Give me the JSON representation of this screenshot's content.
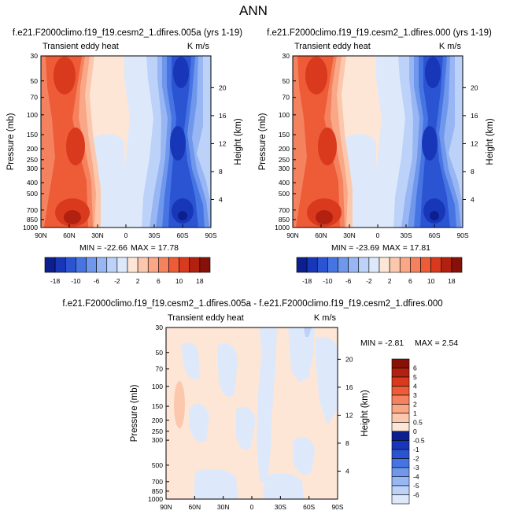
{
  "page": {
    "title": "ANN"
  },
  "colors": {
    "neg": [
      "#0b1f8e",
      "#1837b8",
      "#2b54d3",
      "#4674e3",
      "#6f97ec",
      "#97b6f3",
      "#bcd2f8",
      "#dde9fb"
    ],
    "zero": "#ffffff",
    "pos": [
      "#fde6d6",
      "#fcc8ad",
      "#f9a786",
      "#f5825e",
      "#ed5b37",
      "#d9391c",
      "#b2200f",
      "#861109"
    ]
  },
  "chart_data": [
    {
      "type": "heatmap",
      "panel": "top-left",
      "title": "f.e21.F2000climo.f19_f19.cesm2_1.dfires.005a (yrs 1-19)",
      "subtitle_left": "Transient eddy heat",
      "units": "K m/s",
      "ylabel": "Pressure (mb)",
      "ylabel_right": "Height (km)",
      "x_ticks": [
        "90N",
        "60N",
        "30N",
        "0",
        "30S",
        "60S",
        "90S"
      ],
      "x_range": [
        90,
        -90
      ],
      "y_ticks": [
        "30",
        "50",
        "70",
        "100",
        "150",
        "200",
        "250",
        "300",
        "400",
        "500",
        "700",
        "850",
        "1000"
      ],
      "y_range": [
        1000,
        30
      ],
      "height_ticks": [
        "4",
        "8",
        "12",
        "16",
        "20"
      ],
      "min_label": "MIN = -22.66",
      "max_label": "MAX = 17.78",
      "min": -22.66,
      "max": 17.78,
      "colorbar_labels": [
        "-18",
        "-10",
        "-6",
        "-2",
        "2",
        "6",
        "10",
        "18"
      ]
    },
    {
      "type": "heatmap",
      "panel": "top-right",
      "title": "f.e21.F2000climo.f19_f19.cesm2_1.dfires.000 (yrs 1-19)",
      "subtitle_left": "Transient eddy heat",
      "units": "K m/s",
      "ylabel": "Pressure (mb)",
      "ylabel_right": "Height (km)",
      "x_ticks": [
        "90N",
        "60N",
        "30N",
        "0",
        "30S",
        "60S",
        "90S"
      ],
      "x_range": [
        90,
        -90
      ],
      "y_ticks": [
        "30",
        "50",
        "70",
        "100",
        "150",
        "200",
        "250",
        "300",
        "400",
        "500",
        "700",
        "850",
        "1000"
      ],
      "y_range": [
        1000,
        30
      ],
      "height_ticks": [
        "4",
        "8",
        "12",
        "16",
        "20"
      ],
      "min_label": "MIN = -23.69",
      "max_label": "MAX = 17.81",
      "min": -23.69,
      "max": 17.81,
      "colorbar_labels": [
        "-18",
        "-10",
        "-6",
        "-2",
        "2",
        "6",
        "10",
        "18"
      ]
    },
    {
      "type": "heatmap",
      "panel": "bottom-difference",
      "title": "f.e21.F2000climo.f19_f19.cesm2_1.dfires.005a - f.e21.F2000climo.f19_f19.cesm2_1.dfires.000",
      "subtitle_left": "Transient eddy heat",
      "units": "K m/s",
      "ylabel": "Pressure (mb)",
      "ylabel_right": "Height (km)",
      "x_ticks": [
        "90N",
        "60N",
        "30N",
        "0",
        "30S",
        "60S",
        "90S"
      ],
      "x_range": [
        90,
        -90
      ],
      "y_ticks": [
        "30",
        "50",
        "70",
        "100",
        "150",
        "200",
        "250",
        "300",
        "500",
        "700",
        "850",
        "1000"
      ],
      "y_range": [
        1000,
        30
      ],
      "height_ticks": [
        "4",
        "8",
        "12",
        "16",
        "20"
      ],
      "min_label": "MIN = -2.81",
      "max_label": "MAX =  2.54",
      "min": -2.81,
      "max": 2.54,
      "colorbar_labels": [
        "6",
        "5",
        "4",
        "3",
        "2",
        "1",
        "0.5",
        "0",
        "-0.5",
        "-1",
        "-2",
        "-3",
        "-4",
        "-5",
        "-6"
      ]
    }
  ]
}
